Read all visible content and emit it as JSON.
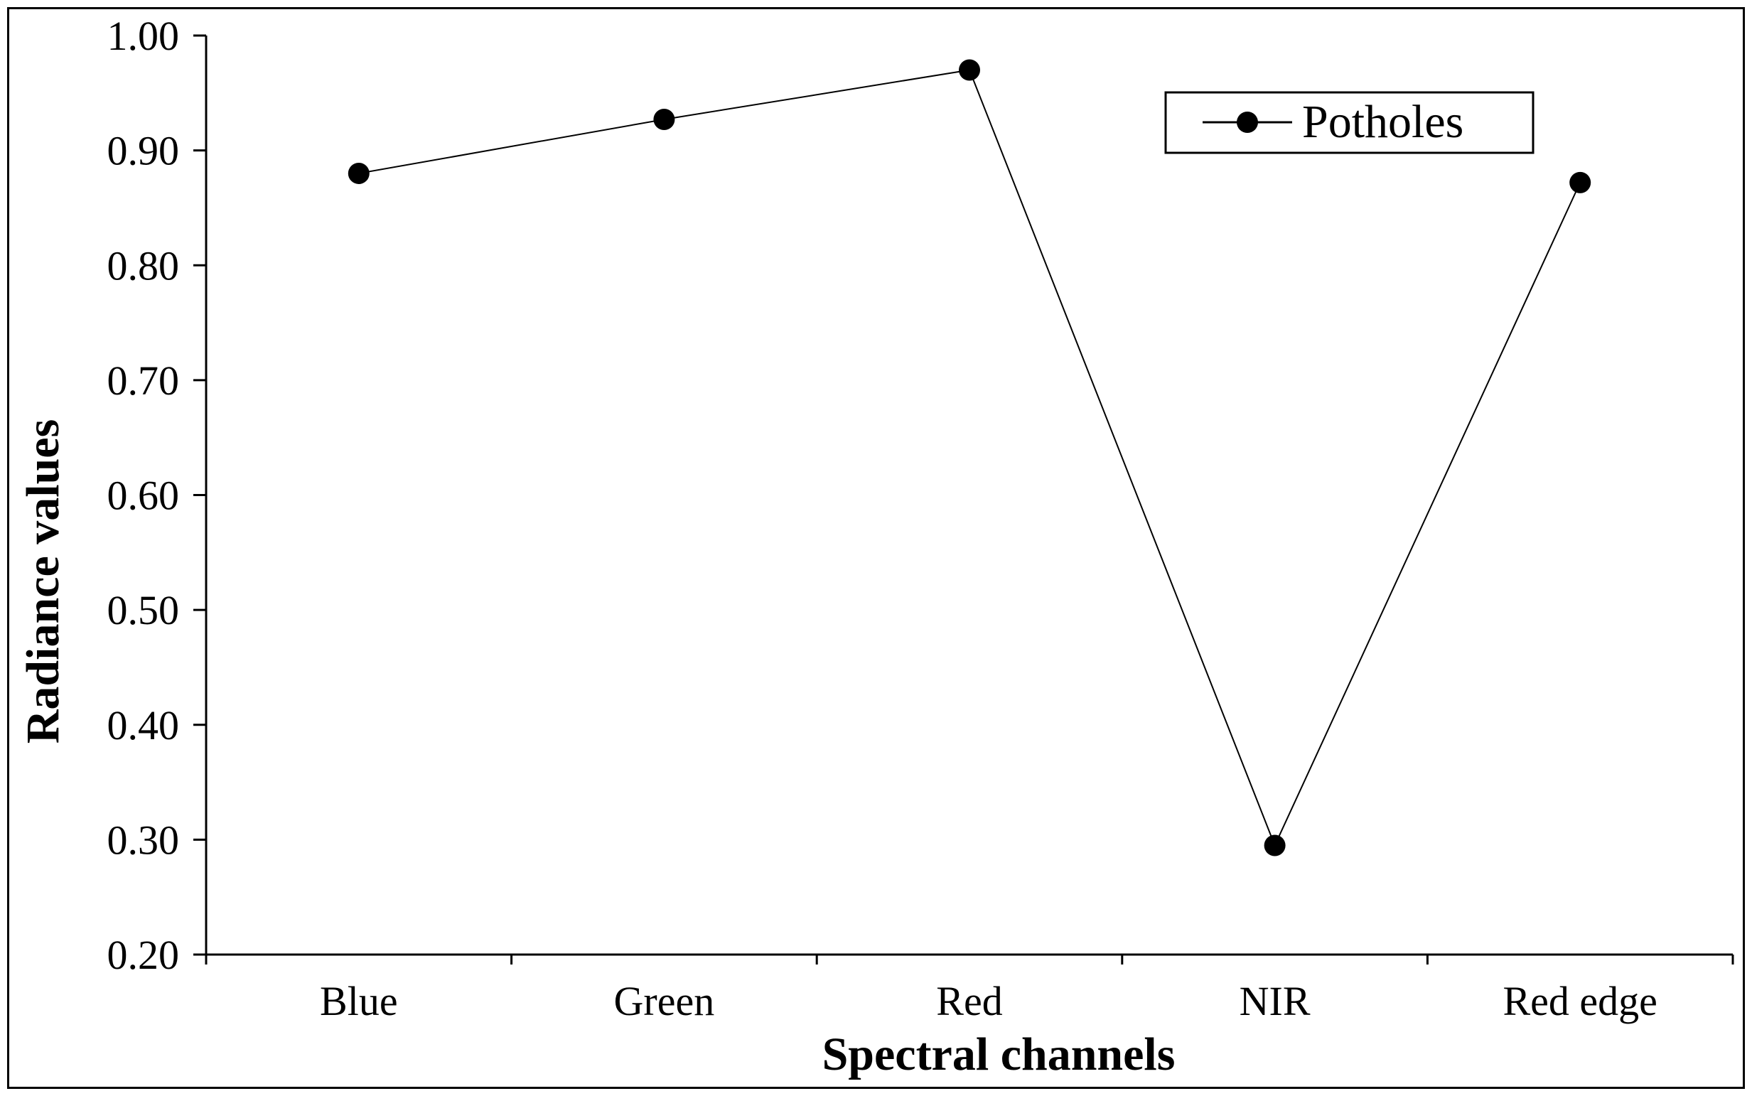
{
  "chart_data": {
    "type": "line",
    "categories": [
      "Blue",
      "Green",
      "Red",
      "NIR",
      "Red edge"
    ],
    "series": [
      {
        "name": "Potholes",
        "values": [
          0.88,
          0.927,
          0.97,
          0.295,
          0.872
        ]
      }
    ],
    "xlabel": "Spectral channels",
    "ylabel": "Radiance values",
    "ylim": [
      0.2,
      1.0
    ],
    "yticks": [
      "0.20",
      "0.30",
      "0.40",
      "0.50",
      "0.60",
      "0.70",
      "0.80",
      "0.90",
      "1.00"
    ],
    "grid": false,
    "legend_position": "top-right",
    "colors": {
      "line": "#000000",
      "marker": "#000000"
    }
  }
}
